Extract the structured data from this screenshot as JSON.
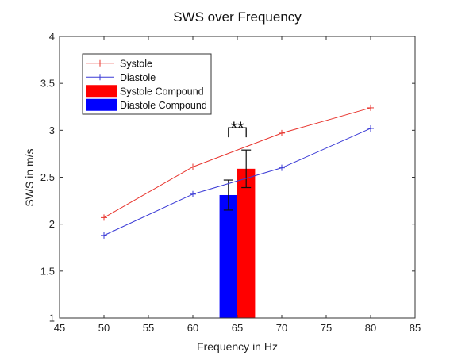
{
  "chart_data": {
    "type": "line",
    "title": "SWS over Frequency",
    "xlabel": "Frequency in Hz",
    "ylabel": "SWS in m/s",
    "xlim": [
      45,
      85
    ],
    "ylim": [
      1,
      4
    ],
    "xticks": [
      45,
      50,
      55,
      60,
      65,
      70,
      75,
      80,
      85
    ],
    "yticks": [
      1,
      1.5,
      2,
      2.5,
      3,
      3.5,
      4
    ],
    "grid": false,
    "legend_position": "top-left",
    "series": [
      {
        "name": "Systole",
        "kind": "line",
        "marker": "+",
        "color": "#e8352e",
        "x": [
          50,
          60,
          70,
          80
        ],
        "y": [
          2.07,
          2.61,
          2.97,
          3.24
        ]
      },
      {
        "name": "Diastole",
        "kind": "line",
        "marker": "+",
        "color": "#3a3ad6",
        "x": [
          50,
          60,
          70,
          80
        ],
        "y": [
          1.88,
          2.32,
          2.6,
          3.02
        ]
      },
      {
        "name": "Systole Compound",
        "kind": "bar",
        "color": "#ff0000",
        "x": [
          66
        ],
        "y": [
          2.59
        ],
        "error": [
          0.2
        ]
      },
      {
        "name": "Diastole Compound",
        "kind": "bar",
        "color": "#0000ff",
        "x": [
          64
        ],
        "y": [
          2.31
        ],
        "error": [
          0.16
        ]
      }
    ],
    "bar_width": 2,
    "significance": {
      "label": "**",
      "x": [
        64,
        66
      ]
    }
  }
}
